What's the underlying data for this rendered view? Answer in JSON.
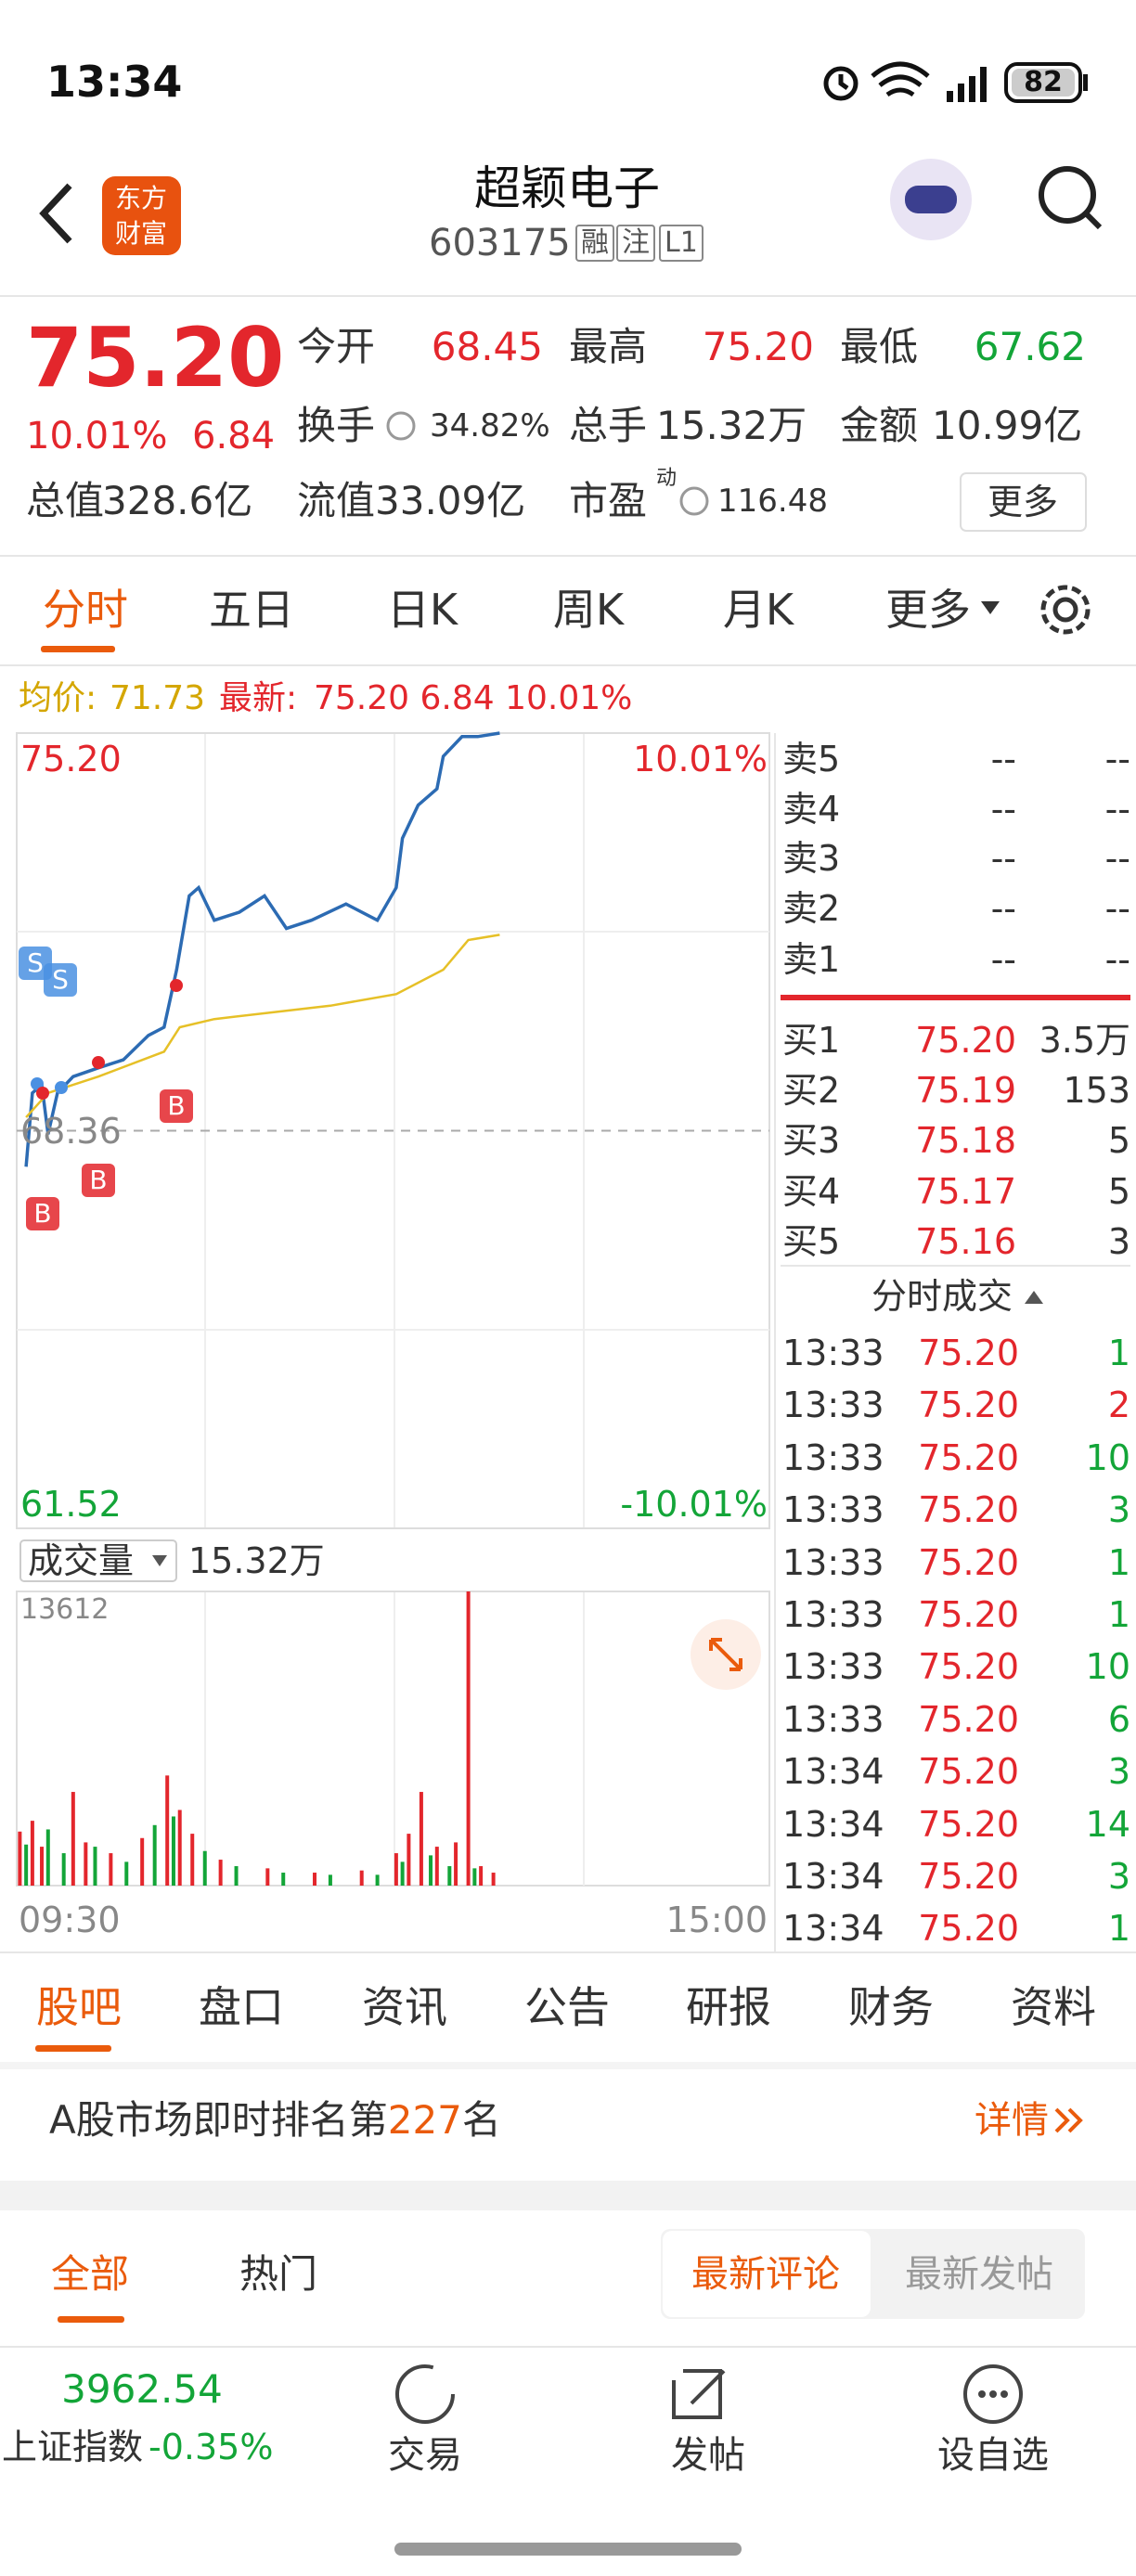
{
  "status": {
    "time": "13:34",
    "battery": "82"
  },
  "header": {
    "logo": [
      "东方",
      "财富"
    ],
    "title": "超颖电子",
    "code": "603175",
    "tags": [
      "融",
      "注",
      "L1"
    ]
  },
  "quote": {
    "price": "75.20",
    "change_pct": "10.01%",
    "change": "6.84",
    "stats": [
      {
        "label": "今开",
        "value": "68.45"
      },
      {
        "label": "最高",
        "value": "75.20"
      },
      {
        "label": "最低",
        "value": "67.62"
      },
      {
        "label": "换手",
        "value": "34.82%"
      },
      {
        "label": "总手",
        "value": "15.32万"
      },
      {
        "label": "金额",
        "value": "10.99亿"
      },
      {
        "label": "总值",
        "value": "328.6亿"
      },
      {
        "label": "流值",
        "value": "33.09亿"
      },
      {
        "label": "市盈",
        "sup": "动",
        "value": "116.48"
      }
    ],
    "more": "更多"
  },
  "tabs": [
    "分时",
    "五日",
    "日K",
    "周K",
    "月K",
    "更多"
  ],
  "info": {
    "avg_label": "均价:",
    "avg": "71.73",
    "latest_label": "最新:",
    "latest": "75.20 6.84 10.01%"
  },
  "markers": [
    "S",
    "S",
    "B",
    "B",
    "B"
  ],
  "chart_data": [
    {
      "type": "line",
      "xlim": [
        "09:30",
        "15:00"
      ],
      "xticks": [
        "09:30",
        "15:00"
      ],
      "ylim": [
        61.52,
        75.2
      ],
      "yticks": [
        {
          "value": 75.2,
          "label": "75.20"
        },
        68.36,
        61.52
      ],
      "y2lim": [
        -10.01,
        10.01
      ],
      "y2ticks": [
        {
          "value": 10.01,
          "label": "10.01%"
        },
        {
          "value": -10.01,
          "label": "-10.01%"
        }
      ],
      "series": [
        {
          "color": "#2c6bb3",
          "x": [
            "09:33",
            "09:35",
            "09:38",
            "09:40",
            "09:43",
            "09:48",
            "09:56",
            "10:04",
            "10:12",
            "10:17",
            "10:21",
            "10:25",
            "10:28",
            "10:33",
            "10:41",
            "10:49",
            "10:56",
            "11:04",
            "11:15",
            "11:25",
            "13:01",
            "13:03",
            "13:08",
            "13:14",
            "13:16",
            "13:22",
            "13:27",
            "13:34"
          ],
          "values": [
            67.74,
            69.01,
            69.15,
            68.3,
            69.01,
            69.29,
            69.44,
            69.58,
            70.0,
            70.14,
            71.13,
            72.4,
            72.54,
            71.98,
            72.12,
            72.4,
            71.84,
            71.98,
            72.26,
            71.98,
            72.54,
            73.39,
            73.96,
            74.24,
            74.8,
            75.14,
            75.14,
            75.2
          ]
        },
        {
          "color": "#e6c027",
          "x": [
            "09:33",
            "09:40",
            "09:56",
            "10:17",
            "10:22",
            "10:33",
            "11:10",
            "13:01",
            "13:16",
            "13:24",
            "13:34"
          ],
          "values": [
            68.59,
            69.01,
            69.29,
            69.72,
            70.14,
            70.28,
            70.51,
            70.71,
            71.13,
            71.64,
            71.73
          ]
        }
      ]
    },
    {
      "type": "bar",
      "title": "成交量",
      "total": "15.32万",
      "xlim": [
        "09:30",
        "15:00"
      ],
      "ylim": [
        0,
        13612
      ],
      "yticks": [
        13612
      ],
      "series": [
        {
          "color": "#e3262c",
          "x": [
            "09:31",
            "09:35",
            "09:38",
            "09:48",
            "09:52",
            "10:00",
            "10:10",
            "10:18",
            "10:22",
            "10:26",
            "10:35",
            "10:50",
            "11:05",
            "11:20",
            "13:01",
            "13:05",
            "13:09",
            "13:14",
            "13:20",
            "13:24",
            "13:28",
            "13:32"
          ],
          "values": [
            2500,
            3000,
            1800,
            4335,
            2000,
            1500,
            2200,
            5095,
            3500,
            2400,
            1200,
            800,
            600,
            700,
            1500,
            2400,
            4335,
            1800,
            2000,
            13612,
            900,
            600
          ]
        },
        {
          "color": "#13a538",
          "x": [
            "09:33",
            "09:40",
            "09:45",
            "09:55",
            "10:05",
            "10:14",
            "10:20",
            "10:30",
            "10:40",
            "10:55",
            "11:10",
            "11:25",
            "13:03",
            "13:12",
            "13:18",
            "13:26"
          ],
          "values": [
            1900,
            2600,
            1500,
            1800,
            1100,
            2800,
            3200,
            1600,
            900,
            600,
            500,
            500,
            1100,
            1400,
            900,
            800
          ]
        }
      ]
    }
  ],
  "order_book": {
    "sell": [
      {
        "label": "卖5",
        "price": "--",
        "vol": "--"
      },
      {
        "label": "卖4",
        "price": "--",
        "vol": "--"
      },
      {
        "label": "卖3",
        "price": "--",
        "vol": "--"
      },
      {
        "label": "卖2",
        "price": "--",
        "vol": "--"
      },
      {
        "label": "卖1",
        "price": "--",
        "vol": "--"
      }
    ],
    "buy": [
      {
        "label": "买1",
        "price": "75.20",
        "vol": "3.5万"
      },
      {
        "label": "买2",
        "price": "75.19",
        "vol": "153"
      },
      {
        "label": "买3",
        "price": "75.18",
        "vol": "5"
      },
      {
        "label": "买4",
        "price": "75.17",
        "vol": "5"
      },
      {
        "label": "买5",
        "price": "75.16",
        "vol": "3"
      }
    ]
  },
  "trades_title": "分时成交",
  "trades": [
    {
      "time": "13:33",
      "price": "75.20",
      "vol": "1",
      "color": "#13a538"
    },
    {
      "time": "13:33",
      "price": "75.20",
      "vol": "2",
      "color": "#e3262c"
    },
    {
      "time": "13:33",
      "price": "75.20",
      "vol": "10",
      "color": "#13a538"
    },
    {
      "time": "13:33",
      "price": "75.20",
      "vol": "3",
      "color": "#13a538"
    },
    {
      "time": "13:33",
      "price": "75.20",
      "vol": "1",
      "color": "#13a538"
    },
    {
      "time": "13:33",
      "price": "75.20",
      "vol": "1",
      "color": "#13a538"
    },
    {
      "time": "13:33",
      "price": "75.20",
      "vol": "10",
      "color": "#13a538"
    },
    {
      "time": "13:33",
      "price": "75.20",
      "vol": "6",
      "color": "#13a538"
    },
    {
      "time": "13:34",
      "price": "75.20",
      "vol": "3",
      "color": "#13a538"
    },
    {
      "time": "13:34",
      "price": "75.20",
      "vol": "14",
      "color": "#13a538"
    },
    {
      "time": "13:34",
      "price": "75.20",
      "vol": "3",
      "color": "#13a538"
    },
    {
      "time": "13:34",
      "price": "75.20",
      "vol": "1",
      "color": "#13a538"
    }
  ],
  "bottom_tabs": [
    "股吧",
    "盘口",
    "资讯",
    "公告",
    "研报",
    "财务",
    "资料"
  ],
  "rank": {
    "prefix": "A股市场即时排名第",
    "num": "227",
    "suffix": "名",
    "link": "详情"
  },
  "filter": {
    "tabs": [
      "全部",
      "热门"
    ],
    "toggle": [
      "最新评论",
      "最新发帖"
    ]
  },
  "nav": {
    "index_value": "3962.54",
    "index_name": "上证指数",
    "index_change": "-0.35%",
    "items": [
      "交易",
      "发帖",
      "设自选"
    ]
  }
}
